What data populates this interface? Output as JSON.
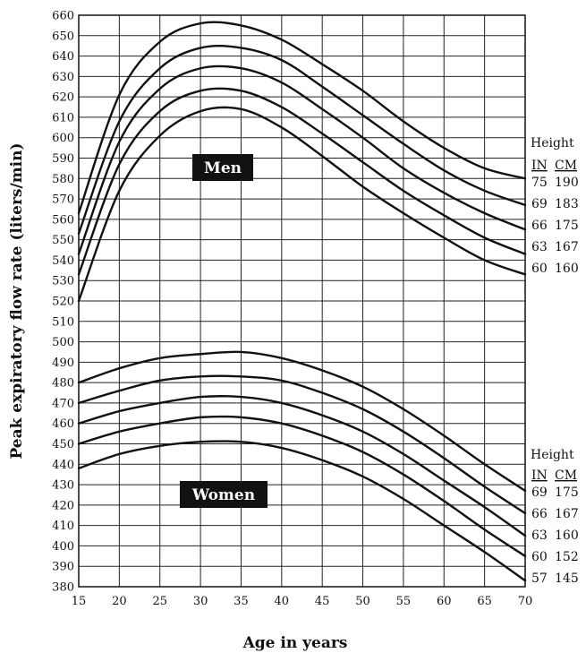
{
  "chart_data": {
    "type": "line",
    "xlabel": "Age in years",
    "ylabel": "Peak expiratory flow rate (liters/min)",
    "xlim": [
      15,
      70
    ],
    "ylim": [
      380,
      660
    ],
    "x_ticks": [
      15,
      20,
      25,
      30,
      35,
      40,
      45,
      50,
      55,
      60,
      65,
      70
    ],
    "y_ticks": [
      380,
      390,
      400,
      410,
      420,
      430,
      440,
      450,
      460,
      470,
      480,
      490,
      500,
      510,
      520,
      530,
      540,
      550,
      560,
      570,
      580,
      590,
      600,
      610,
      620,
      630,
      640,
      650,
      660
    ],
    "grid": true,
    "x": [
      15,
      20,
      25,
      30,
      35,
      40,
      45,
      50,
      55,
      60,
      65,
      70
    ],
    "groups": [
      {
        "label": "Men",
        "legend_title": "Height",
        "legend_headers": [
          "IN",
          "CM"
        ],
        "series": [
          {
            "in": "75",
            "cm": "190",
            "values": [
              563,
              621,
              647,
              656,
              655,
              648,
              636,
              623,
              608,
              595,
              585,
              580
            ]
          },
          {
            "in": "69",
            "cm": "183",
            "values": [
              553,
              608,
              634,
              644,
              644,
              638,
              625,
              611,
              597,
              584,
              574,
              567
            ]
          },
          {
            "in": "66",
            "cm": "175",
            "values": [
              543,
              598,
              624,
              634,
              634,
              627,
              614,
              600,
              585,
              573,
              563,
              555
            ]
          },
          {
            "in": "63",
            "cm": "167",
            "values": [
              533,
              587,
              613,
              623,
              623,
              615,
              602,
              588,
              574,
              562,
              551,
              543
            ]
          },
          {
            "in": "60",
            "cm": "160",
            "values": [
              520,
              574,
              601,
              613,
              614,
              605,
              591,
              576,
              563,
              551,
              540,
              533
            ]
          }
        ]
      },
      {
        "label": "Women",
        "legend_title": "Height",
        "legend_headers": [
          "IN",
          "CM"
        ],
        "series": [
          {
            "in": "69",
            "cm": "175",
            "values": [
              480,
              487,
              492,
              494,
              495,
              492,
              486,
              478,
              467,
              454,
              440,
              427
            ]
          },
          {
            "in": "66",
            "cm": "167",
            "values": [
              470,
              476,
              481,
              483,
              483,
              481,
              475,
              467,
              456,
              443,
              429,
              416
            ]
          },
          {
            "in": "63",
            "cm": "160",
            "values": [
              460,
              466,
              470,
              473,
              473,
              470,
              464,
              456,
              445,
              432,
              419,
              405
            ]
          },
          {
            "in": "60",
            "cm": "152",
            "values": [
              450,
              456,
              460,
              463,
              463,
              460,
              454,
              446,
              435,
              422,
              408,
              395
            ]
          },
          {
            "in": "57",
            "cm": "145",
            "values": [
              438,
              445,
              449,
              451,
              451,
              448,
              442,
              434,
              423,
              410,
              397,
              383
            ]
          }
        ]
      }
    ]
  },
  "colors": {
    "line": "#111111",
    "grid": "#222222",
    "tag_bg": "#111111",
    "tag_text": "#ffffff"
  }
}
